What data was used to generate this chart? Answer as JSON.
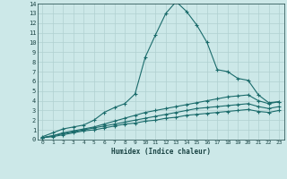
{
  "xlabel": "Humidex (Indice chaleur)",
  "bg_color": "#cce8e8",
  "grid_color": "#b0d0d0",
  "line_color": "#1a6b6b",
  "xlim": [
    -0.5,
    23.5
  ],
  "ylim": [
    0,
    14
  ],
  "xticks": [
    0,
    1,
    2,
    3,
    4,
    5,
    6,
    7,
    8,
    9,
    10,
    11,
    12,
    13,
    14,
    15,
    16,
    17,
    18,
    19,
    20,
    21,
    22,
    23
  ],
  "yticks": [
    0,
    1,
    2,
    3,
    4,
    5,
    6,
    7,
    8,
    9,
    10,
    11,
    12,
    13,
    14
  ],
  "series": [
    {
      "x": [
        0,
        1,
        2,
        3,
        4,
        5,
        6,
        7,
        8,
        9,
        10,
        11,
        12,
        13,
        14,
        15,
        16,
        17,
        18,
        19,
        20,
        21,
        22,
        23
      ],
      "y": [
        0.3,
        0.7,
        1.1,
        1.3,
        1.5,
        2.0,
        2.8,
        3.3,
        3.7,
        4.7,
        8.5,
        10.8,
        13.0,
        14.2,
        13.2,
        11.8,
        10.0,
        7.2,
        7.0,
        6.3,
        6.1,
        4.6,
        3.8,
        3.9
      ]
    },
    {
      "x": [
        0,
        1,
        2,
        3,
        4,
        5,
        6,
        7,
        8,
        9,
        10,
        11,
        12,
        13,
        14,
        15,
        16,
        17,
        18,
        19,
        20,
        21,
        22,
        23
      ],
      "y": [
        0.2,
        0.4,
        0.7,
        0.9,
        1.1,
        1.3,
        1.6,
        1.9,
        2.2,
        2.5,
        2.8,
        3.0,
        3.2,
        3.4,
        3.6,
        3.8,
        4.0,
        4.2,
        4.4,
        4.5,
        4.6,
        4.0,
        3.7,
        3.9
      ]
    },
    {
      "x": [
        0,
        1,
        2,
        3,
        4,
        5,
        6,
        7,
        8,
        9,
        10,
        11,
        12,
        13,
        14,
        15,
        16,
        17,
        18,
        19,
        20,
        21,
        22,
        23
      ],
      "y": [
        0.2,
        0.4,
        0.6,
        0.8,
        1.0,
        1.2,
        1.4,
        1.6,
        1.8,
        2.0,
        2.2,
        2.4,
        2.6,
        2.8,
        3.0,
        3.2,
        3.3,
        3.4,
        3.5,
        3.6,
        3.7,
        3.4,
        3.2,
        3.4
      ]
    },
    {
      "x": [
        0,
        1,
        2,
        3,
        4,
        5,
        6,
        7,
        8,
        9,
        10,
        11,
        12,
        13,
        14,
        15,
        16,
        17,
        18,
        19,
        20,
        21,
        22,
        23
      ],
      "y": [
        0.2,
        0.3,
        0.5,
        0.7,
        0.9,
        1.0,
        1.2,
        1.4,
        1.6,
        1.7,
        1.9,
        2.0,
        2.2,
        2.3,
        2.5,
        2.6,
        2.7,
        2.8,
        2.9,
        3.0,
        3.1,
        2.9,
        2.8,
        3.0
      ]
    }
  ]
}
